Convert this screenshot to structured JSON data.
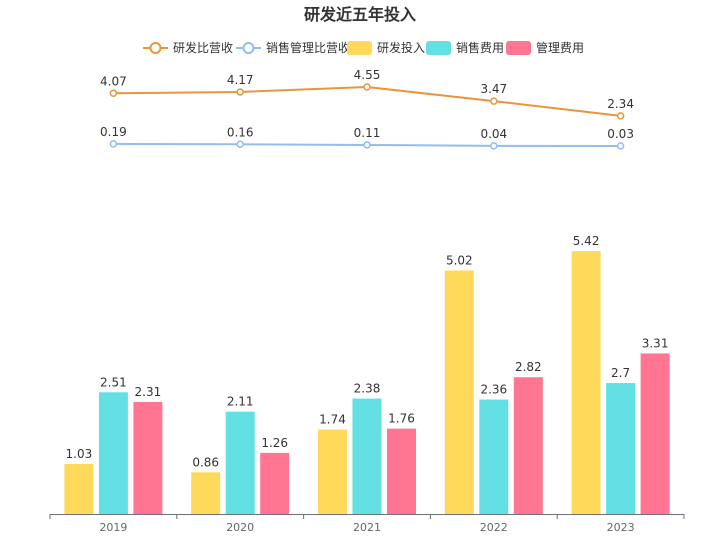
{
  "chart_data": {
    "type": "bar",
    "title": "研发近五年投入",
    "categories": [
      "2019",
      "2020",
      "2021",
      "2022",
      "2023"
    ],
    "series": [
      {
        "name": "研发投入",
        "kind": "bar",
        "color": "#FFD95A",
        "values": [
          1.03,
          0.86,
          1.74,
          5.02,
          5.42
        ]
      },
      {
        "name": "销售费用",
        "kind": "bar",
        "color": "#62E0E3",
        "values": [
          2.51,
          2.11,
          2.38,
          2.36,
          2.7
        ]
      },
      {
        "name": "管理费用",
        "kind": "bar",
        "color": "#FF7592",
        "values": [
          2.31,
          1.26,
          1.76,
          2.82,
          3.31
        ]
      }
    ],
    "line_series": [
      {
        "name": "研发比营收",
        "kind": "line",
        "color": "#E8963E",
        "values": [
          4.07,
          4.17,
          4.55,
          3.47,
          2.34
        ]
      },
      {
        "name": "销售管理比营收",
        "kind": "line",
        "color": "#93BDF0",
        "values": [
          0.19,
          0.16,
          0.11,
          0.04,
          0.03
        ]
      }
    ],
    "legend_position": "top-center",
    "grid": false
  }
}
